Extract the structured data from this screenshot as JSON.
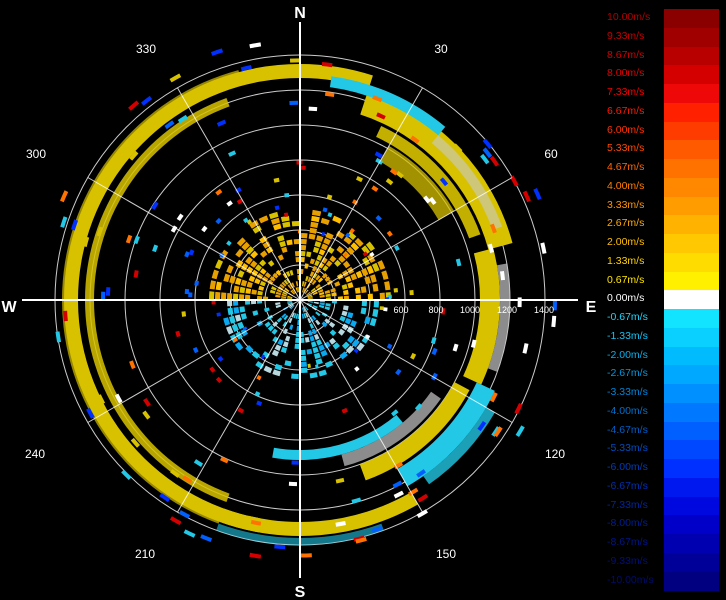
{
  "compass": {
    "north": "N",
    "south": "S",
    "east": "E",
    "west": "W"
  },
  "bearing_labels": [
    "30",
    "60",
    "120",
    "150",
    "210",
    "240",
    "300",
    "330"
  ],
  "range_labels": [
    "600",
    "800",
    "1000",
    "1200",
    "1400"
  ],
  "colors": {
    "background": "#000000",
    "ring": "#ffffff",
    "positive_band": "#d8c200",
    "approach_band": "#22c8e6",
    "clutter": "#c8c8c8"
  },
  "legend": {
    "items": [
      {
        "label": "10.00m/s",
        "color": "#8a0000",
        "text_color": "#b00000"
      },
      {
        "label": "9.33m/s",
        "color": "#a00000",
        "text_color": "#c00000"
      },
      {
        "label": "8.67m/s",
        "color": "#b80000",
        "text_color": "#d00000"
      },
      {
        "label": "8.00m/s",
        "color": "#d40000",
        "text_color": "#e00000"
      },
      {
        "label": "7.33m/s",
        "color": "#ee0808",
        "text_color": "#f00000"
      },
      {
        "label": "6.67m/s",
        "color": "#ff2000",
        "text_color": "#ff1a00"
      },
      {
        "label": "6.00m/s",
        "color": "#ff3c00",
        "text_color": "#ff3000"
      },
      {
        "label": "5.33m/s",
        "color": "#ff5a00",
        "text_color": "#ff4800"
      },
      {
        "label": "4.67m/s",
        "color": "#ff7200",
        "text_color": "#ff6400"
      },
      {
        "label": "4.00m/s",
        "color": "#ff8800",
        "text_color": "#ff7c00"
      },
      {
        "label": "3.33m/s",
        "color": "#ff9c00",
        "text_color": "#ff9400"
      },
      {
        "label": "2.67m/s",
        "color": "#ffb200",
        "text_color": "#ffaa00"
      },
      {
        "label": "2.00m/s",
        "color": "#ffc800",
        "text_color": "#ffbe00"
      },
      {
        "label": "1.33m/s",
        "color": "#ffdc00",
        "text_color": "#ffd200"
      },
      {
        "label": "0.67m/s",
        "color": "#fff000",
        "text_color": "#ffe600"
      },
      {
        "label": "0.00m/s",
        "color": "#ffffff",
        "text_color": "#ffffff"
      },
      {
        "label": "-0.67m/s",
        "color": "#12e4ff",
        "text_color": "#18d8ff"
      },
      {
        "label": "-1.33m/s",
        "color": "#0ad0ff",
        "text_color": "#10c4f4"
      },
      {
        "label": "-2.00m/s",
        "color": "#00bcff",
        "text_color": "#08b0ec"
      },
      {
        "label": "-2.67m/s",
        "color": "#00a8ff",
        "text_color": "#0098e0"
      },
      {
        "label": "-3.33m/s",
        "color": "#0090ff",
        "text_color": "#0084d8"
      },
      {
        "label": "-4.00m/s",
        "color": "#0078ff",
        "text_color": "#0070cc"
      },
      {
        "label": "-4.67m/s",
        "color": "#0060ff",
        "text_color": "#005ec4"
      },
      {
        "label": "-5.33m/s",
        "color": "#0048ff",
        "text_color": "#004cbc"
      },
      {
        "label": "-6.00m/s",
        "color": "#0030ff",
        "text_color": "#003cb4"
      },
      {
        "label": "-6.67m/s",
        "color": "#0018f0",
        "text_color": "#0030a8"
      },
      {
        "label": "-7.33m/s",
        "color": "#0008e0",
        "text_color": "#00269c"
      },
      {
        "label": "-8.00m/s",
        "color": "#0000c8",
        "text_color": "#001e90"
      },
      {
        "label": "-8.67m/s",
        "color": "#0000b0",
        "text_color": "#001684"
      },
      {
        "label": "-9.33m/s",
        "color": "#000098",
        "text_color": "#001078"
      },
      {
        "label": "-10.00m/s",
        "color": "#000080",
        "text_color": "#000c6c"
      }
    ]
  }
}
